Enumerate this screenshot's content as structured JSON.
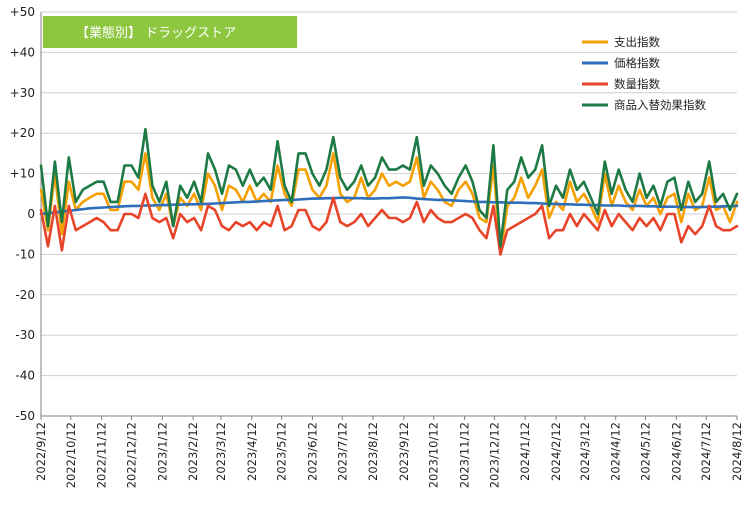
{
  "chart_data": {
    "type": "line",
    "title": "【業態別】 ドラッグストア",
    "xlabel": "",
    "ylabel": "",
    "ylim": [
      -50,
      50
    ],
    "yticks": [
      -50,
      -40,
      -30,
      -20,
      -10,
      0,
      10,
      20,
      30,
      40,
      50
    ],
    "ytick_labels": [
      "-50",
      "-40",
      "-30",
      "-20",
      "-10",
      "0",
      "+10",
      "+20",
      "+30",
      "+40",
      "+50"
    ],
    "x_start": "2022-09-12",
    "x_step_days": 7,
    "x_tick_labels": [
      "2022/9/12",
      "2022/10/12",
      "2022/11/12",
      "2022/12/12",
      "2023/1/12",
      "2023/2/12",
      "2023/3/12",
      "2023/4/12",
      "2023/5/12",
      "2023/6/12",
      "2023/7/12",
      "2023/8/12",
      "2023/9/12",
      "2023/10/12",
      "2023/11/12",
      "2023/12/12",
      "2024/1/12",
      "2024/2/12",
      "2024/3/12",
      "2024/4/12",
      "2024/5/12",
      "2024/6/12",
      "2024/7/12",
      "2024/8/12"
    ],
    "grid": true,
    "legend_position": "top-right",
    "series": [
      {
        "name": "支出指数",
        "color": "#F5A000",
        "values": [
          6,
          -4,
          10,
          -5,
          8,
          1,
          3,
          4,
          5,
          5,
          1,
          1,
          8,
          8,
          6,
          15,
          4,
          1,
          5,
          -3,
          4,
          2,
          5,
          1,
          10,
          7,
          1,
          7,
          6,
          3,
          7,
          3,
          5,
          3,
          12,
          5,
          2,
          11,
          11,
          6,
          4,
          7,
          15,
          5,
          3,
          4,
          9,
          4,
          6,
          10,
          7,
          8,
          7,
          8,
          14,
          4,
          8,
          6,
          3,
          2,
          6,
          8,
          5,
          -1,
          -2,
          12,
          -10,
          2,
          4,
          9,
          4,
          7,
          11,
          -1,
          3,
          1,
          8,
          3,
          5,
          2,
          -2,
          10,
          2,
          7,
          3,
          1,
          6,
          2,
          4,
          0,
          4,
          5,
          -2,
          5,
          1,
          2,
          9,
          1,
          2,
          -2,
          3
        ]
      },
      {
        "name": "価格指数",
        "color": "#2F6EBA",
        "values": [
          0,
          0.2,
          0.4,
          0.6,
          0.8,
          1,
          1.2,
          1.4,
          1.5,
          1.6,
          1.7,
          1.8,
          1.9,
          2,
          2,
          2.1,
          2.1,
          2.2,
          2.2,
          2.3,
          2.3,
          2.4,
          2.4,
          2.5,
          2.5,
          2.6,
          2.7,
          2.8,
          2.9,
          3,
          3,
          3.1,
          3.2,
          3.3,
          3.4,
          3.5,
          3.5,
          3.6,
          3.7,
          3.8,
          3.8,
          3.9,
          3.9,
          4,
          4,
          3.9,
          3.9,
          3.8,
          3.8,
          3.9,
          3.9,
          4,
          4.1,
          4,
          3.8,
          3.7,
          3.6,
          3.5,
          3.5,
          3.4,
          3.3,
          3.2,
          3.1,
          3,
          3,
          2.9,
          2.9,
          2.8,
          2.8,
          2.8,
          2.7,
          2.7,
          2.6,
          2.5,
          2.5,
          2.4,
          2.4,
          2.3,
          2.3,
          2.2,
          2.2,
          2.1,
          2.1,
          2.1,
          2,
          2,
          2,
          1.9,
          1.9,
          1.8,
          1.8,
          1.8,
          1.7,
          1.7,
          1.7,
          1.7,
          1.8,
          1.8,
          1.9,
          1.9,
          2
        ]
      },
      {
        "name": "数量指数",
        "color": "#E8442A",
        "values": [
          1,
          -8,
          2,
          -9,
          2,
          -4,
          -3,
          -2,
          -1,
          -2,
          -4,
          -4,
          0,
          0,
          -1,
          5,
          -1,
          -2,
          -1,
          -6,
          0,
          -2,
          -1,
          -4,
          2,
          1,
          -3,
          -4,
          -2,
          -3,
          -2,
          -4,
          -2,
          -3,
          2,
          -4,
          -3,
          1,
          1,
          -3,
          -4,
          -2,
          4,
          -2,
          -3,
          -2,
          0,
          -3,
          -1,
          1,
          -1,
          -1,
          -2,
          -1,
          3,
          -2,
          1,
          -1,
          -2,
          -2,
          -1,
          0,
          -1,
          -4,
          -6,
          2,
          -10,
          -4,
          -3,
          -2,
          -1,
          0,
          2,
          -6,
          -4,
          -4,
          0,
          -3,
          0,
          -2,
          -4,
          1,
          -3,
          0,
          -2,
          -4,
          -1,
          -3,
          -1,
          -4,
          0,
          0,
          -7,
          -3,
          -5,
          -3,
          2,
          -3,
          -4,
          -4,
          -3
        ]
      },
      {
        "name": "商品入替効果指数",
        "color": "#1E7A45",
        "values": [
          12,
          -3,
          13,
          -2,
          14,
          3,
          6,
          7,
          8,
          8,
          3,
          3,
          12,
          12,
          9,
          21,
          7,
          3,
          8,
          -3,
          7,
          4,
          8,
          3,
          15,
          11,
          5,
          12,
          11,
          7,
          11,
          7,
          9,
          6,
          18,
          7,
          3,
          15,
          15,
          10,
          7,
          11,
          19,
          9,
          6,
          8,
          12,
          7,
          9,
          14,
          11,
          11,
          12,
          11,
          19,
          7,
          12,
          10,
          7,
          5,
          9,
          12,
          8,
          1,
          -1,
          17,
          -8,
          6,
          8,
          14,
          9,
          11,
          17,
          2,
          7,
          4,
          11,
          6,
          8,
          4,
          0,
          13,
          5,
          11,
          6,
          3,
          10,
          4,
          7,
          2,
          8,
          9,
          1,
          8,
          3,
          5,
          13,
          3,
          5,
          1,
          5
        ]
      }
    ]
  }
}
